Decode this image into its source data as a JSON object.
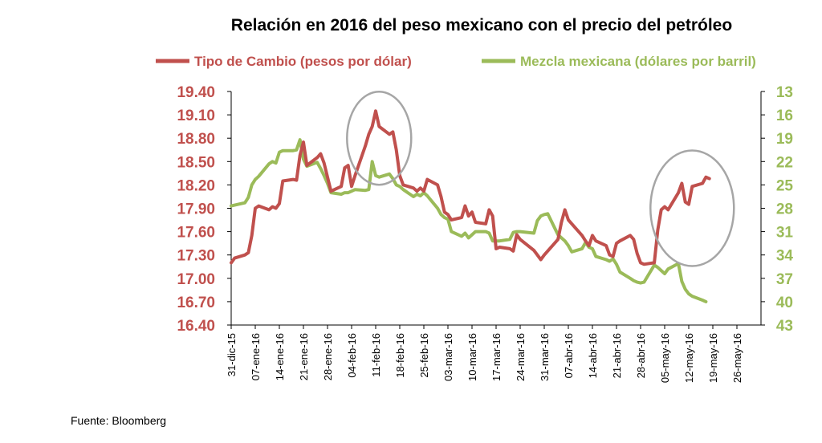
{
  "source": "Fuente: Bloomberg",
  "chart_data": {
    "type": "line",
    "title": "Relación en 2016 del peso mexicano con el precio del petróleo",
    "legend_position": "top",
    "grid": false,
    "x_tick_labels": [
      "31-dic-15",
      "07-ene-16",
      "14-ene-16",
      "21-ene-16",
      "28-ene-16",
      "04-feb-16",
      "11-feb-16",
      "18-feb-16",
      "25-feb-16",
      "03-mar-16",
      "10-mar-16",
      "17-mar-16",
      "24-mar-16",
      "31-mar-16",
      "07-abr-16",
      "14-abr-16",
      "21-abr-16",
      "28-abr-16",
      "05-may-16",
      "12-may-16",
      "19-may-16",
      "26-may-16"
    ],
    "x_range": [
      "2015-12-31",
      "2016-05-26"
    ],
    "y_left": {
      "ticks": [
        "16.40",
        "16.70",
        "17.00",
        "17.30",
        "17.60",
        "17.90",
        "18.20",
        "18.50",
        "18.80",
        "19.10",
        "19.40"
      ],
      "range": [
        16.4,
        19.4
      ],
      "color": "#c0504d"
    },
    "y_right": {
      "ticks": [
        "13",
        "16",
        "19",
        "22",
        "25",
        "28",
        "31",
        "34",
        "37",
        "40",
        "43"
      ],
      "range": [
        13,
        43
      ],
      "inverted": true,
      "color": "#9bbb59"
    },
    "series": [
      {
        "name": "Tipo de Cambio (pesos por dólar)",
        "axis": "left",
        "color": "#c0504d",
        "points": [
          [
            "2015-12-31",
            17.2
          ],
          [
            "2016-01-01",
            17.26
          ],
          [
            "2016-01-04",
            17.3
          ],
          [
            "2016-01-05",
            17.33
          ],
          [
            "2016-01-06",
            17.55
          ],
          [
            "2016-01-07",
            17.9
          ],
          [
            "2016-01-08",
            17.93
          ],
          [
            "2016-01-11",
            17.88
          ],
          [
            "2016-01-12",
            17.92
          ],
          [
            "2016-01-13",
            17.9
          ],
          [
            "2016-01-14",
            17.96
          ],
          [
            "2016-01-15",
            18.25
          ],
          [
            "2016-01-18",
            18.27
          ],
          [
            "2016-01-19",
            18.26
          ],
          [
            "2016-01-20",
            18.58
          ],
          [
            "2016-01-21",
            18.75
          ],
          [
            "2016-01-22",
            18.45
          ],
          [
            "2016-01-25",
            18.55
          ],
          [
            "2016-01-26",
            18.6
          ],
          [
            "2016-01-27",
            18.48
          ],
          [
            "2016-01-28",
            18.3
          ],
          [
            "2016-01-29",
            18.12
          ],
          [
            "2016-02-01",
            18.18
          ],
          [
            "2016-02-02",
            18.42
          ],
          [
            "2016-02-03",
            18.45
          ],
          [
            "2016-02-04",
            18.18
          ],
          [
            "2016-02-05",
            18.32
          ],
          [
            "2016-02-08",
            18.7
          ],
          [
            "2016-02-09",
            18.85
          ],
          [
            "2016-02-10",
            18.95
          ],
          [
            "2016-02-11",
            19.15
          ],
          [
            "2016-02-12",
            18.95
          ],
          [
            "2016-02-15",
            18.85
          ],
          [
            "2016-02-16",
            18.88
          ],
          [
            "2016-02-17",
            18.65
          ],
          [
            "2016-02-18",
            18.32
          ],
          [
            "2016-02-19",
            18.2
          ],
          [
            "2016-02-22",
            18.16
          ],
          [
            "2016-02-23",
            18.12
          ],
          [
            "2016-02-24",
            18.16
          ],
          [
            "2016-02-25",
            18.12
          ],
          [
            "2016-02-26",
            18.27
          ],
          [
            "2016-02-29",
            18.2
          ],
          [
            "2016-03-01",
            18.05
          ],
          [
            "2016-03-02",
            17.85
          ],
          [
            "2016-03-03",
            17.82
          ],
          [
            "2016-03-04",
            17.75
          ],
          [
            "2016-03-07",
            17.78
          ],
          [
            "2016-03-08",
            17.93
          ],
          [
            "2016-03-09",
            17.8
          ],
          [
            "2016-03-10",
            17.85
          ],
          [
            "2016-03-11",
            17.72
          ],
          [
            "2016-03-14",
            17.7
          ],
          [
            "2016-03-15",
            17.88
          ],
          [
            "2016-03-16",
            17.8
          ],
          [
            "2016-03-17",
            17.38
          ],
          [
            "2016-03-18",
            17.4
          ],
          [
            "2016-03-21",
            17.38
          ],
          [
            "2016-03-22",
            17.35
          ],
          [
            "2016-03-23",
            17.56
          ],
          [
            "2016-03-24",
            17.5
          ],
          [
            "2016-03-28",
            17.36
          ],
          [
            "2016-03-29",
            17.3
          ],
          [
            "2016-03-30",
            17.24
          ],
          [
            "2016-03-31",
            17.3
          ],
          [
            "2016-04-01",
            17.35
          ],
          [
            "2016-04-04",
            17.5
          ],
          [
            "2016-04-05",
            17.72
          ],
          [
            "2016-04-06",
            17.88
          ],
          [
            "2016-04-07",
            17.75
          ],
          [
            "2016-04-08",
            17.7
          ],
          [
            "2016-04-11",
            17.55
          ],
          [
            "2016-04-12",
            17.48
          ],
          [
            "2016-04-13",
            17.42
          ],
          [
            "2016-04-14",
            17.55
          ],
          [
            "2016-04-15",
            17.48
          ],
          [
            "2016-04-18",
            17.42
          ],
          [
            "2016-04-19",
            17.3
          ],
          [
            "2016-04-20",
            17.28
          ],
          [
            "2016-04-21",
            17.45
          ],
          [
            "2016-04-22",
            17.48
          ],
          [
            "2016-04-25",
            17.55
          ],
          [
            "2016-04-26",
            17.5
          ],
          [
            "2016-04-27",
            17.32
          ],
          [
            "2016-04-28",
            17.2
          ],
          [
            "2016-04-29",
            17.18
          ],
          [
            "2016-05-02",
            17.2
          ],
          [
            "2016-05-03",
            17.62
          ],
          [
            "2016-05-04",
            17.88
          ],
          [
            "2016-05-05",
            17.92
          ],
          [
            "2016-05-06",
            17.88
          ],
          [
            "2016-05-09",
            18.1
          ],
          [
            "2016-05-10",
            18.22
          ],
          [
            "2016-05-11",
            17.98
          ],
          [
            "2016-05-12",
            17.95
          ],
          [
            "2016-05-13",
            18.18
          ],
          [
            "2016-05-16",
            18.22
          ],
          [
            "2016-05-17",
            18.3
          ],
          [
            "2016-05-18",
            18.28
          ]
        ]
      },
      {
        "name": "Mezcla mexicana (dólares por barril)",
        "axis": "right",
        "color": "#9bbb59",
        "points": [
          [
            "2015-12-31",
            27.7
          ],
          [
            "2016-01-01",
            27.6
          ],
          [
            "2016-01-04",
            27.3
          ],
          [
            "2016-01-05",
            26.6
          ],
          [
            "2016-01-06",
            25.0
          ],
          [
            "2016-01-07",
            24.3
          ],
          [
            "2016-01-08",
            23.9
          ],
          [
            "2016-01-11",
            22.3
          ],
          [
            "2016-01-12",
            22.0
          ],
          [
            "2016-01-13",
            22.2
          ],
          [
            "2016-01-14",
            20.8
          ],
          [
            "2016-01-15",
            20.6
          ],
          [
            "2016-01-18",
            20.6
          ],
          [
            "2016-01-19",
            20.5
          ],
          [
            "2016-01-20",
            19.2
          ],
          [
            "2016-01-21",
            21.7
          ],
          [
            "2016-01-22",
            22.6
          ],
          [
            "2016-01-25",
            22.1
          ],
          [
            "2016-01-26",
            22.9
          ],
          [
            "2016-01-27",
            23.8
          ],
          [
            "2016-01-28",
            24.8
          ],
          [
            "2016-01-29",
            26.0
          ],
          [
            "2016-02-01",
            26.2
          ],
          [
            "2016-02-02",
            26.0
          ],
          [
            "2016-02-03",
            26.0
          ],
          [
            "2016-02-04",
            25.8
          ],
          [
            "2016-02-05",
            25.6
          ],
          [
            "2016-02-08",
            25.7
          ],
          [
            "2016-02-09",
            25.6
          ],
          [
            "2016-02-10",
            22.0
          ],
          [
            "2016-02-11",
            23.8
          ],
          [
            "2016-02-12",
            24.0
          ],
          [
            "2016-02-15",
            23.6
          ],
          [
            "2016-02-16",
            24.2
          ],
          [
            "2016-02-17",
            25.0
          ],
          [
            "2016-02-18",
            25.2
          ],
          [
            "2016-02-19",
            25.6
          ],
          [
            "2016-02-22",
            26.5
          ],
          [
            "2016-02-23",
            26.2
          ],
          [
            "2016-02-24",
            26.4
          ],
          [
            "2016-02-25",
            26.0
          ],
          [
            "2016-02-26",
            26.4
          ],
          [
            "2016-02-29",
            28.0
          ],
          [
            "2016-03-01",
            28.8
          ],
          [
            "2016-03-02",
            29.2
          ],
          [
            "2016-03-03",
            29.4
          ],
          [
            "2016-03-04",
            31.0
          ],
          [
            "2016-03-07",
            31.6
          ],
          [
            "2016-03-08",
            31.2
          ],
          [
            "2016-03-09",
            31.8
          ],
          [
            "2016-03-10",
            31.4
          ],
          [
            "2016-03-11",
            31.0
          ],
          [
            "2016-03-14",
            31.0
          ],
          [
            "2016-03-15",
            31.2
          ],
          [
            "2016-03-16",
            32.2
          ],
          [
            "2016-03-17",
            32.2
          ],
          [
            "2016-03-18",
            32.2
          ],
          [
            "2016-03-21",
            32.0
          ],
          [
            "2016-03-22",
            31.1
          ],
          [
            "2016-03-23",
            31.0
          ],
          [
            "2016-03-24",
            31.0
          ],
          [
            "2016-03-28",
            31.2
          ],
          [
            "2016-03-29",
            29.6
          ],
          [
            "2016-03-30",
            29.0
          ],
          [
            "2016-03-31",
            28.8
          ],
          [
            "2016-04-01",
            28.7
          ],
          [
            "2016-04-04",
            31.4
          ],
          [
            "2016-04-05",
            31.8
          ],
          [
            "2016-04-06",
            32.2
          ],
          [
            "2016-04-07",
            32.8
          ],
          [
            "2016-04-08",
            33.6
          ],
          [
            "2016-04-11",
            33.2
          ],
          [
            "2016-04-12",
            32.4
          ],
          [
            "2016-04-13",
            33.0
          ],
          [
            "2016-04-14",
            33.2
          ],
          [
            "2016-04-15",
            34.2
          ],
          [
            "2016-04-18",
            34.6
          ],
          [
            "2016-04-19",
            34.8
          ],
          [
            "2016-04-20",
            34.5
          ],
          [
            "2016-04-21",
            35.2
          ],
          [
            "2016-04-22",
            36.2
          ],
          [
            "2016-04-25",
            37.0
          ],
          [
            "2016-04-26",
            37.3
          ],
          [
            "2016-04-27",
            37.5
          ],
          [
            "2016-04-28",
            37.6
          ],
          [
            "2016-04-29",
            37.5
          ],
          [
            "2016-05-02",
            35.3
          ],
          [
            "2016-05-03",
            35.6
          ],
          [
            "2016-05-04",
            36.0
          ],
          [
            "2016-05-05",
            36.4
          ],
          [
            "2016-05-06",
            35.8
          ],
          [
            "2016-05-09",
            35.1
          ],
          [
            "2016-05-10",
            37.4
          ],
          [
            "2016-05-11",
            38.4
          ],
          [
            "2016-05-12",
            39.0
          ],
          [
            "2016-05-13",
            39.3
          ],
          [
            "2016-05-16",
            39.8
          ],
          [
            "2016-05-17",
            40.0
          ]
        ]
      }
    ],
    "annotations": [
      {
        "shape": "ellipse",
        "color": "#a6a6a6",
        "around": {
          "x": "2016-02-12",
          "y_left": 18.8
        }
      },
      {
        "shape": "ellipse",
        "color": "#a6a6a6",
        "around": {
          "x": "2016-05-13",
          "y_left": 17.9
        }
      }
    ]
  }
}
